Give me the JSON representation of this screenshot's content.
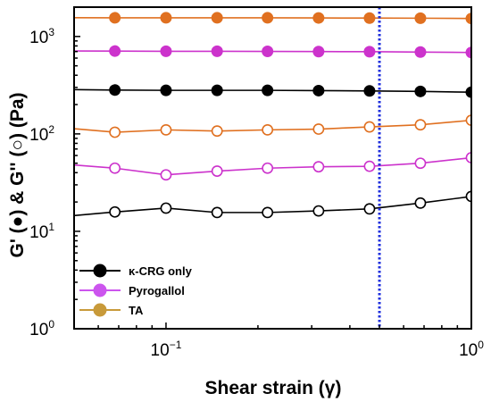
{
  "colors": {
    "kcrg": "#000000",
    "pyrogallol": "#cc33cc",
    "ta": "#e07020",
    "ta_legend_marker": "#c89a3a",
    "pyrogallol_legend_marker": "#cc55ee",
    "vline": "#1f2fdd"
  },
  "chart_data": {
    "type": "scatter",
    "xscale": "log",
    "yscale": "log",
    "xlim": [
      0.05,
      1.0
    ],
    "ylim": [
      1,
      2000
    ],
    "xlabel": "Shear strain (γ)",
    "ylabel": "G' (●) & G'' (○) (Pa)",
    "x_ticks": [
      {
        "value": 0.1,
        "base": "10",
        "exp": "−1"
      },
      {
        "value": 1.0,
        "base": "10",
        "exp": "0"
      }
    ],
    "y_ticks": [
      {
        "value": 1,
        "base": "10",
        "exp": "0"
      },
      {
        "value": 10,
        "base": "10",
        "exp": "1"
      },
      {
        "value": 100,
        "base": "10",
        "exp": "2"
      },
      {
        "value": 1000,
        "base": "10",
        "exp": "3"
      }
    ],
    "reference_line": {
      "x": 0.5,
      "style": "dotted"
    },
    "legend_position": "bottom-left",
    "x": [
      0.05,
      0.068,
      0.1,
      0.147,
      0.215,
      0.316,
      0.464,
      0.681,
      1.0
    ],
    "series": [
      {
        "name": "κ-CRG only",
        "modulus": "G'",
        "filled": true,
        "color_key": "kcrg",
        "values": [
          285,
          282,
          280,
          280,
          280,
          278,
          276,
          273,
          268
        ]
      },
      {
        "name": "κ-CRG only",
        "modulus": "G''",
        "filled": false,
        "color_key": "kcrg",
        "values": [
          14.5,
          15.8,
          17.3,
          15.6,
          15.6,
          16.2,
          17.0,
          19.5,
          22.8
        ]
      },
      {
        "name": "Pyrogallol",
        "modulus": "G'",
        "filled": true,
        "color_key": "pyrogallol",
        "values": [
          710,
          708,
          705,
          705,
          703,
          700,
          698,
          692,
          685
        ]
      },
      {
        "name": "Pyrogallol",
        "modulus": "G''",
        "filled": false,
        "color_key": "pyrogallol",
        "values": [
          48,
          44.5,
          38,
          41.5,
          44.5,
          46,
          46.5,
          50,
          57
        ]
      },
      {
        "name": "TA",
        "modulus": "G'",
        "filled": true,
        "color_key": "ta",
        "values": [
          1560,
          1555,
          1555,
          1555,
          1555,
          1550,
          1545,
          1540,
          1530
        ]
      },
      {
        "name": "TA",
        "modulus": "G''",
        "filled": false,
        "color_key": "ta",
        "values": [
          113,
          104,
          110,
          107,
          110,
          112,
          118,
          124,
          138
        ]
      }
    ],
    "legend": [
      {
        "label": "κ-CRG only",
        "marker_color_key": "kcrg"
      },
      {
        "label": "Pyrogallol",
        "marker_color_key": "pyrogallol_legend_marker"
      },
      {
        "label": "TA",
        "marker_color_key": "ta_legend_marker"
      }
    ]
  }
}
